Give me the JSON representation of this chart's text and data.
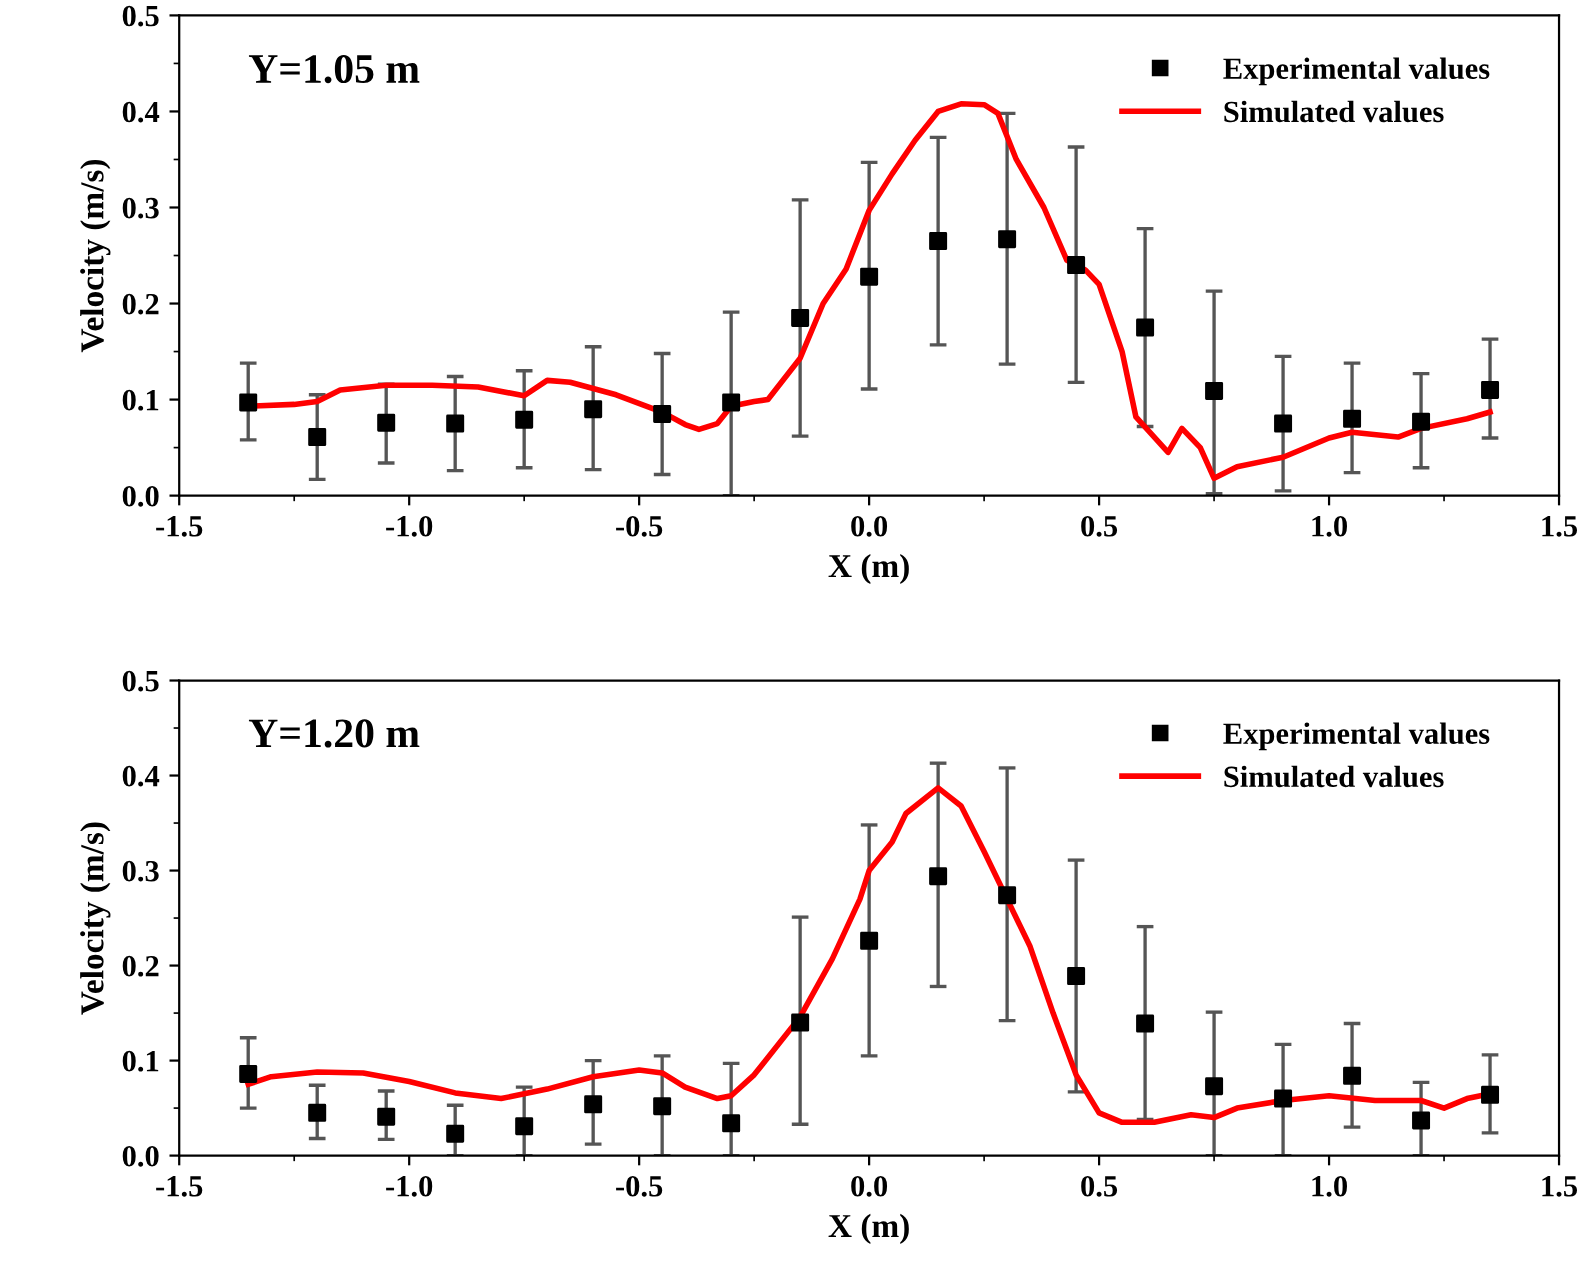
{
  "chart_data": [
    {
      "type": "scatter",
      "xlabel": "X (m)",
      "ylabel": "Velocity (m/s)",
      "annotations": [
        "Y=1.05 m"
      ],
      "legend": "top right",
      "grid": false,
      "xlim": [
        -1.5,
        1.5
      ],
      "xticks": [
        {
          "value": -1.5,
          "label": "-1.5"
        },
        {
          "value": -1.0,
          "label": "-1.0"
        },
        {
          "value": -0.5,
          "label": "-0.5"
        },
        {
          "value": 0,
          "label": "0.0"
        },
        {
          "value": 0.5,
          "label": "0.5"
        },
        {
          "value": 1.0,
          "label": "1.0"
        },
        {
          "value": 1.5,
          "label": "1.5"
        }
      ],
      "ylim": [
        0,
        0.5
      ],
      "yticks": [
        {
          "value": 0,
          "label": "0.0"
        },
        0.1,
        0.2,
        0.3,
        0.4,
        0.5
      ],
      "series": [
        {
          "name": "Experimental values",
          "color": "#000000",
          "marker": "square",
          "x": [
            -1.35,
            -1.2,
            -1.05,
            -0.9,
            -0.75,
            -0.6,
            -0.45,
            -0.3,
            -0.15,
            0,
            0.15,
            0.3,
            0.45,
            0.6,
            0.75,
            0.9,
            1.05,
            1.2,
            1.35
          ],
          "values": [
            0.097,
            0.061,
            0.076,
            0.075,
            0.079,
            0.09,
            0.085,
            0.097,
            0.185,
            0.228,
            0.265,
            0.267,
            0.24,
            0.175,
            0.109,
            0.075,
            0.08,
            0.077,
            0.11
          ],
          "errors": [
            [
              0.058,
              0.138
            ],
            [
              0.017,
              0.105
            ],
            [
              0.034,
              0.116
            ],
            [
              0.026,
              0.124
            ],
            [
              0.029,
              0.13
            ],
            [
              0.027,
              0.155
            ],
            [
              0.022,
              0.148
            ],
            [
              0.0,
              0.191
            ],
            [
              0.062,
              0.308
            ],
            [
              0.111,
              0.347
            ],
            [
              0.157,
              0.373
            ],
            [
              0.137,
              0.398
            ],
            [
              0.118,
              0.363
            ],
            [
              0.072,
              0.278
            ],
            [
              0.002,
              0.213
            ],
            [
              0.005,
              0.145
            ],
            [
              0.024,
              0.138
            ],
            [
              0.029,
              0.127
            ],
            [
              0.06,
              0.163
            ]
          ]
        },
        {
          "name": "Simulated values",
          "type": "line",
          "color": "#ff0000",
          "line_style": "solid",
          "x": [
            -1.35,
            -1.25,
            -1.2,
            -1.15,
            -1.05,
            -0.95,
            -0.85,
            -0.75,
            -0.7,
            -0.65,
            -0.55,
            -0.45,
            -0.4,
            -0.37,
            -0.33,
            -0.3,
            -0.25,
            -0.22,
            -0.15,
            -0.1,
            -0.05,
            0.0,
            0.05,
            0.1,
            0.15,
            0.2,
            0.25,
            0.28,
            0.32,
            0.38,
            0.43,
            0.47,
            0.5,
            0.55,
            0.58,
            0.65,
            0.68,
            0.72,
            0.75,
            0.8,
            0.9,
            1.0,
            1.05,
            1.15,
            1.2,
            1.3,
            1.35
          ],
          "values": [
            0.093,
            0.095,
            0.098,
            0.11,
            0.115,
            0.115,
            0.113,
            0.104,
            0.12,
            0.118,
            0.105,
            0.087,
            0.074,
            0.069,
            0.075,
            0.093,
            0.098,
            0.1,
            0.143,
            0.2,
            0.236,
            0.297,
            0.335,
            0.37,
            0.4,
            0.408,
            0.407,
            0.398,
            0.35,
            0.3,
            0.245,
            0.235,
            0.22,
            0.15,
            0.082,
            0.045,
            0.07,
            0.05,
            0.018,
            0.03,
            0.04,
            0.06,
            0.066,
            0.061,
            0.07,
            0.08,
            0.087
          ]
        }
      ]
    },
    {
      "type": "scatter",
      "xlabel": "X (m)",
      "ylabel": "Velocity (m/s)",
      "annotations": [
        "Y=1.20 m"
      ],
      "legend": "top right",
      "grid": false,
      "xlim": [
        -1.5,
        1.5
      ],
      "xticks": [
        {
          "value": -1.5,
          "label": "-1.5"
        },
        {
          "value": -1.0,
          "label": "-1.0"
        },
        {
          "value": -0.5,
          "label": "-0.5"
        },
        {
          "value": 0,
          "label": "0.0"
        },
        {
          "value": 0.5,
          "label": "0.5"
        },
        {
          "value": 1.0,
          "label": "1.0"
        },
        {
          "value": 1.5,
          "label": "1.5"
        }
      ],
      "ylim": [
        0,
        0.5
      ],
      "yticks": [
        {
          "value": 0,
          "label": "0.0"
        },
        0.1,
        0.2,
        0.3,
        0.4,
        0.5
      ],
      "series": [
        {
          "name": "Experimental values",
          "color": "#000000",
          "marker": "square",
          "x": [
            -1.35,
            -1.2,
            -1.05,
            -0.9,
            -0.75,
            -0.6,
            -0.45,
            -0.3,
            -0.15,
            0,
            0.15,
            0.3,
            0.45,
            0.6,
            0.75,
            0.9,
            1.05,
            1.2,
            1.35
          ],
          "values": [
            0.086,
            0.045,
            0.041,
            0.023,
            0.031,
            0.054,
            0.052,
            0.034,
            0.14,
            0.226,
            0.294,
            0.274,
            0.189,
            0.139,
            0.073,
            0.06,
            0.084,
            0.037,
            0.064
          ],
          "errors": [
            [
              0.05,
              0.124
            ],
            [
              0.018,
              0.074
            ],
            [
              0.017,
              0.068
            ],
            [
              0.0,
              0.053
            ],
            [
              0.0,
              0.072
            ],
            [
              0.012,
              0.1
            ],
            [
              0.0,
              0.105
            ],
            [
              0.0,
              0.097
            ],
            [
              0.033,
              0.251
            ],
            [
              0.105,
              0.348
            ],
            [
              0.178,
              0.413
            ],
            [
              0.142,
              0.408
            ],
            [
              0.067,
              0.311
            ],
            [
              0.038,
              0.241
            ],
            [
              0.0,
              0.151
            ],
            [
              0.0,
              0.117
            ],
            [
              0.03,
              0.139
            ],
            [
              0.0,
              0.077
            ],
            [
              0.024,
              0.106
            ]
          ]
        },
        {
          "name": "Simulated values",
          "type": "line",
          "color": "#ff0000",
          "line_style": "solid",
          "x": [
            -1.35,
            -1.3,
            -1.2,
            -1.1,
            -1.0,
            -0.9,
            -0.8,
            -0.7,
            -0.6,
            -0.5,
            -0.45,
            -0.4,
            -0.33,
            -0.3,
            -0.25,
            -0.15,
            -0.08,
            -0.02,
            0.0,
            0.05,
            0.08,
            0.15,
            0.2,
            0.25,
            0.3,
            0.35,
            0.4,
            0.45,
            0.5,
            0.55,
            0.62,
            0.7,
            0.75,
            0.8,
            0.9,
            1.0,
            1.1,
            1.2,
            1.25,
            1.3,
            1.35
          ],
          "values": [
            0.075,
            0.083,
            0.088,
            0.087,
            0.078,
            0.066,
            0.06,
            0.07,
            0.083,
            0.09,
            0.087,
            0.072,
            0.06,
            0.063,
            0.085,
            0.146,
            0.207,
            0.27,
            0.3,
            0.33,
            0.36,
            0.387,
            0.368,
            0.32,
            0.27,
            0.22,
            0.15,
            0.085,
            0.045,
            0.035,
            0.035,
            0.043,
            0.04,
            0.05,
            0.058,
            0.063,
            0.058,
            0.058,
            0.05,
            0.06,
            0.065
          ]
        }
      ]
    }
  ]
}
